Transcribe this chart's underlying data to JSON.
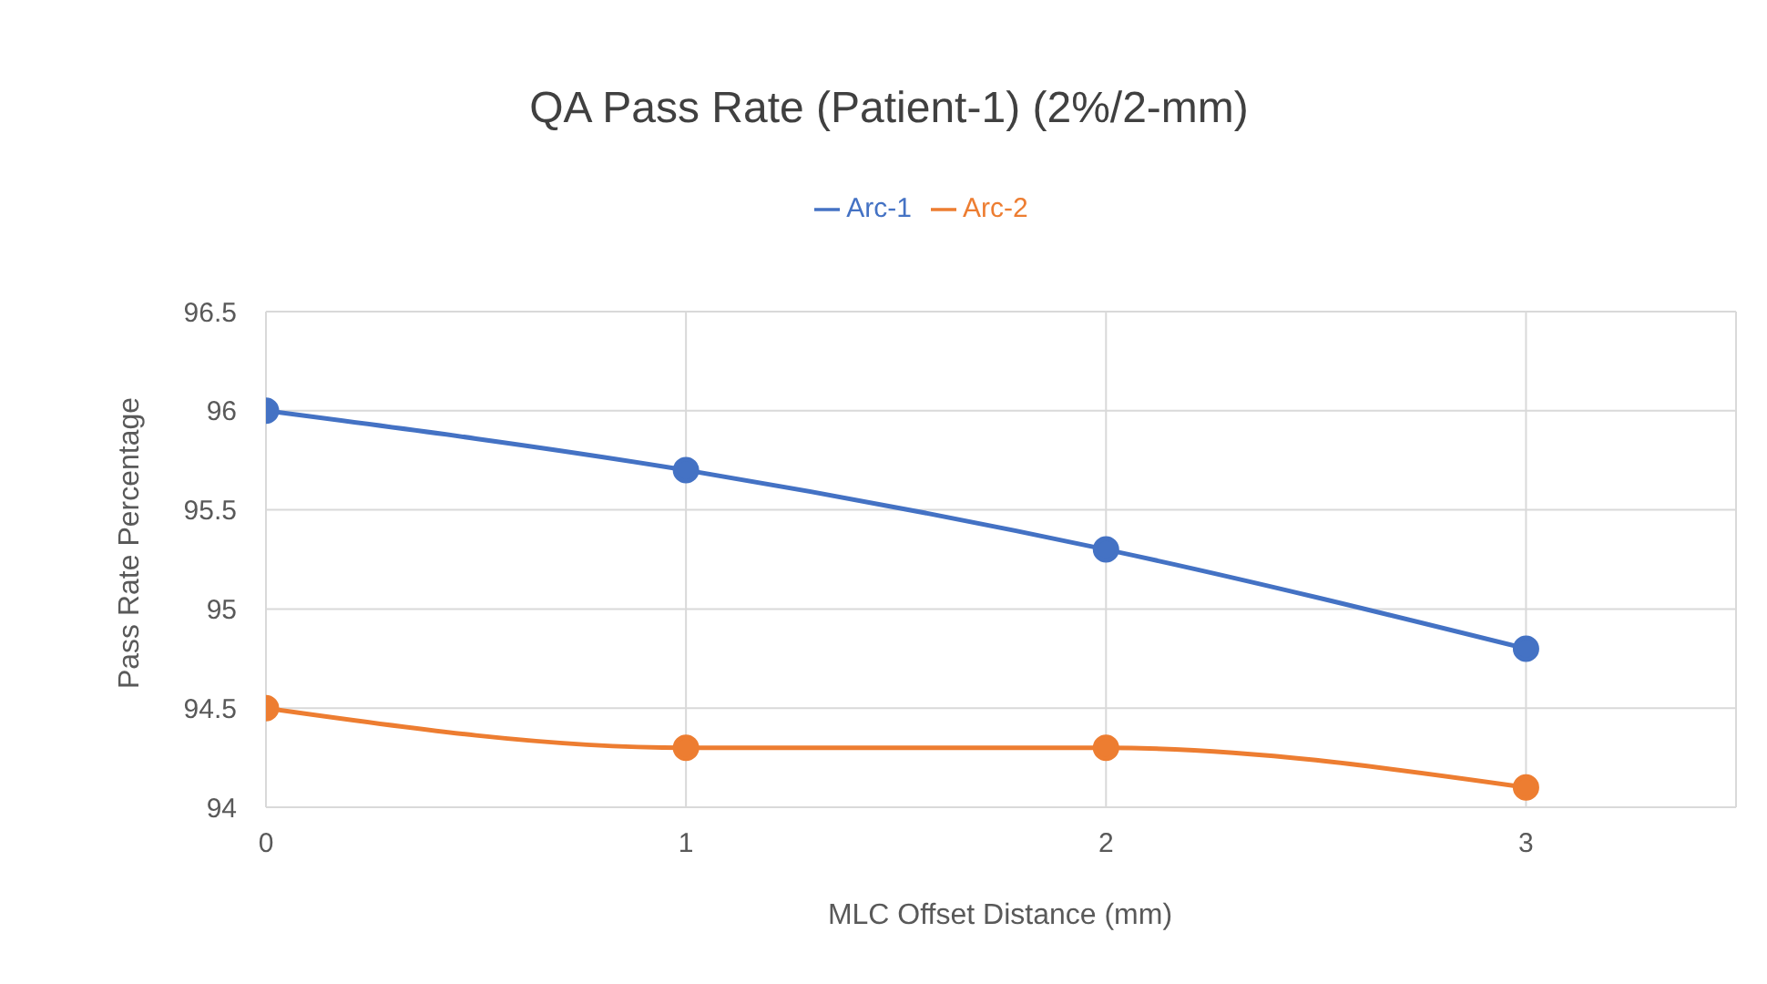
{
  "chart_data": {
    "type": "line",
    "title": "QA Pass Rate (Patient-1) (2%/2-mm)",
    "xlabel": "MLC Offset Distance (mm)",
    "ylabel": "Pass Rate Percentage",
    "x": [
      0,
      1,
      2,
      3
    ],
    "series": [
      {
        "name": "Arc-1",
        "color": "#4472c4",
        "values": [
          96,
          95.7,
          95.3,
          94.8
        ]
      },
      {
        "name": "Arc-2",
        "color": "#ed7d31",
        "values": [
          94.5,
          94.3,
          94.3,
          94.1
        ]
      }
    ],
    "xlim": [
      0,
      3.5
    ],
    "xticks": [
      0,
      1,
      2,
      3
    ],
    "ylim": [
      94,
      96.5
    ],
    "yticks": [
      94,
      94.5,
      95,
      95.5,
      96,
      96.5
    ],
    "grid": true,
    "legend": "top",
    "marker": "circle",
    "line_style": "solid"
  }
}
